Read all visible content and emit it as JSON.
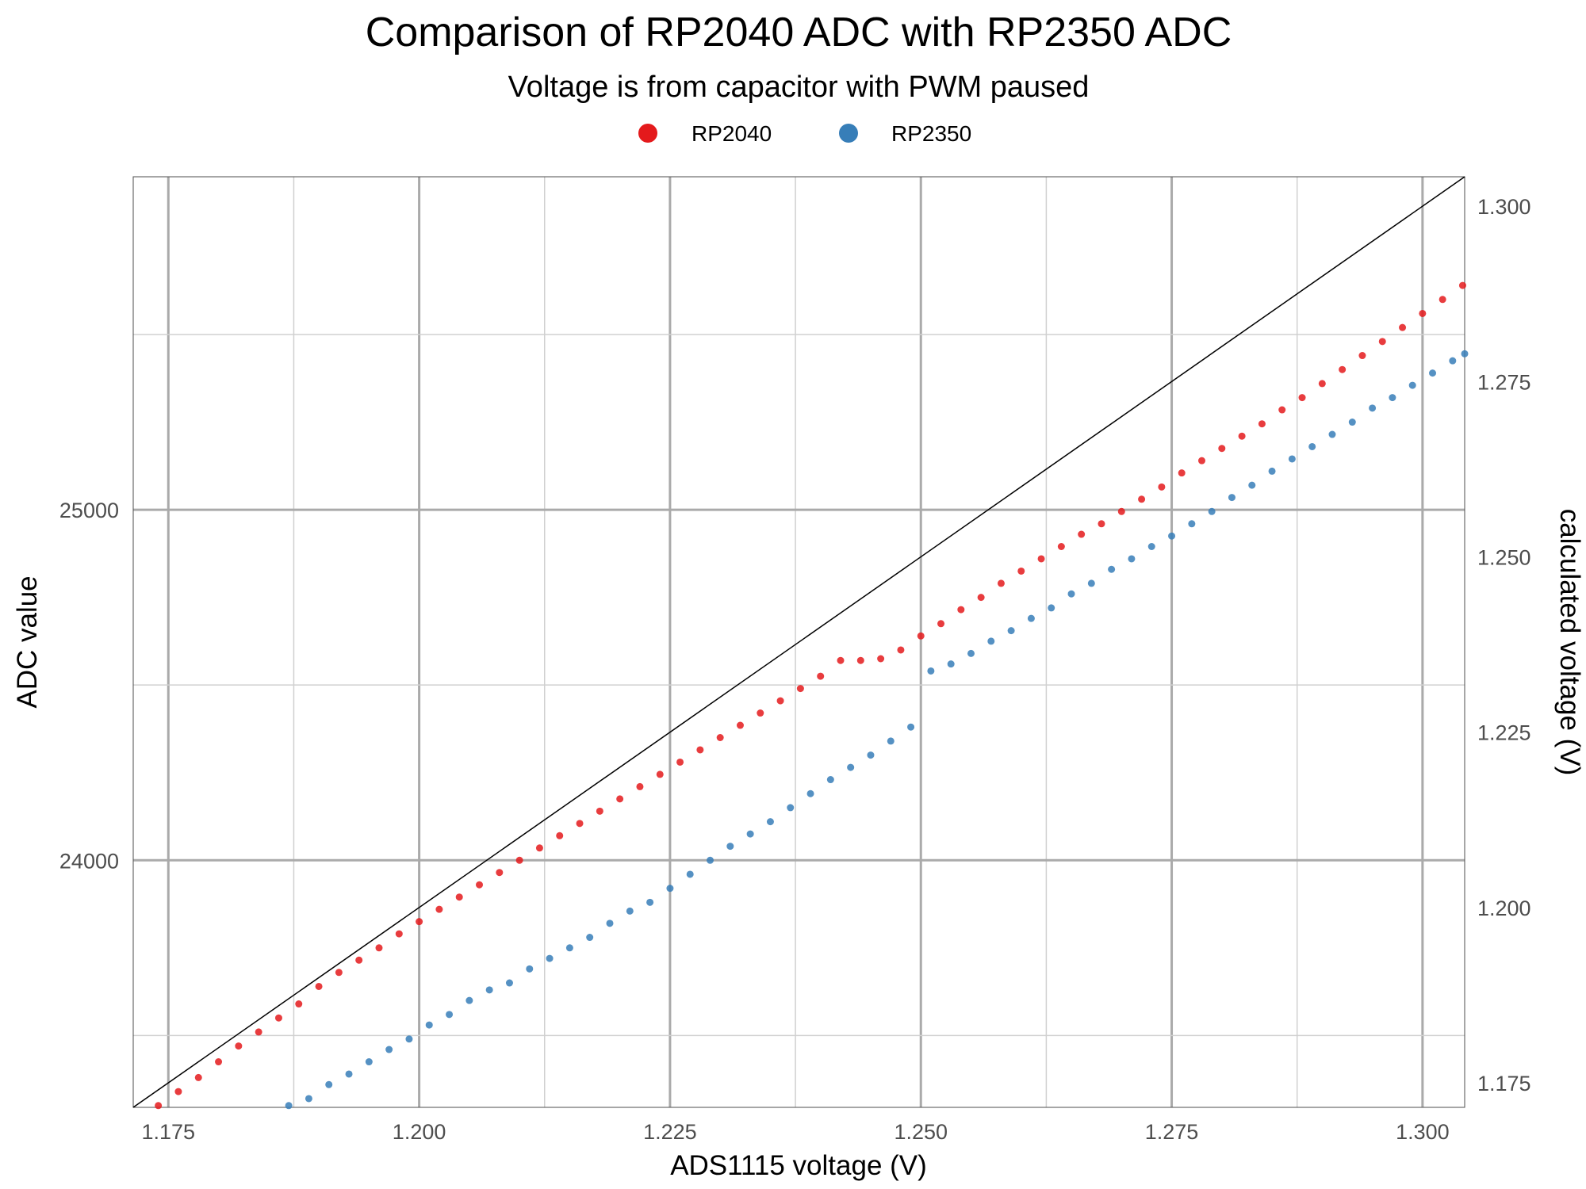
{
  "chart_data": {
    "type": "scatter",
    "title": "Comparison of RP2040 ADC with RP2350 ADC",
    "subtitle": "Voltage is from capacitor with PWM paused",
    "xlabel": "ADS1115 voltage (V)",
    "ylabel": "ADC value",
    "y2label": "calculated voltage (V)",
    "xlim": [
      1.1715,
      1.3042
    ],
    "ylim": [
      23295,
      25950
    ],
    "y2lim": [
      1.1715,
      1.3042
    ],
    "x_ticks": [
      "1.175",
      "1.200",
      "1.225",
      "1.250",
      "1.275",
      "1.300"
    ],
    "y_ticks": [
      "24000",
      "25000"
    ],
    "y2_ticks": [
      "1.175",
      "1.200",
      "1.225",
      "1.250",
      "1.275",
      "1.300"
    ],
    "reference_line": "y = x (on calculated voltage axis)",
    "grid": true,
    "legend_position": "top",
    "series": [
      {
        "name": "RP2040",
        "color": "#e41a1c",
        "points": [
          [
            1.174,
            23300
          ],
          [
            1.176,
            23340
          ],
          [
            1.178,
            23380
          ],
          [
            1.18,
            23425
          ],
          [
            1.182,
            23470
          ],
          [
            1.184,
            23510
          ],
          [
            1.186,
            23550
          ],
          [
            1.188,
            23590
          ],
          [
            1.19,
            23640
          ],
          [
            1.192,
            23680
          ],
          [
            1.194,
            23715
          ],
          [
            1.196,
            23750
          ],
          [
            1.198,
            23790
          ],
          [
            1.2,
            23825
          ],
          [
            1.202,
            23860
          ],
          [
            1.204,
            23895
          ],
          [
            1.206,
            23930
          ],
          [
            1.208,
            23965
          ],
          [
            1.21,
            24000
          ],
          [
            1.212,
            24035
          ],
          [
            1.214,
            24070
          ],
          [
            1.216,
            24105
          ],
          [
            1.218,
            24140
          ],
          [
            1.22,
            24175
          ],
          [
            1.222,
            24210
          ],
          [
            1.224,
            24245
          ],
          [
            1.226,
            24280
          ],
          [
            1.228,
            24315
          ],
          [
            1.23,
            24350
          ],
          [
            1.232,
            24385
          ],
          [
            1.234,
            24420
          ],
          [
            1.236,
            24455
          ],
          [
            1.238,
            24490
          ],
          [
            1.24,
            24525
          ],
          [
            1.242,
            24570
          ],
          [
            1.244,
            24570
          ],
          [
            1.246,
            24575
          ],
          [
            1.248,
            24600
          ],
          [
            1.25,
            24640
          ],
          [
            1.252,
            24675
          ],
          [
            1.254,
            24715
          ],
          [
            1.256,
            24750
          ],
          [
            1.258,
            24790
          ],
          [
            1.26,
            24825
          ],
          [
            1.262,
            24860
          ],
          [
            1.264,
            24895
          ],
          [
            1.266,
            24930
          ],
          [
            1.268,
            24960
          ],
          [
            1.27,
            24995
          ],
          [
            1.272,
            25030
          ],
          [
            1.274,
            25065
          ],
          [
            1.276,
            25105
          ],
          [
            1.278,
            25140
          ],
          [
            1.28,
            25175
          ],
          [
            1.282,
            25210
          ],
          [
            1.284,
            25245
          ],
          [
            1.286,
            25285
          ],
          [
            1.288,
            25320
          ],
          [
            1.29,
            25360
          ],
          [
            1.292,
            25400
          ],
          [
            1.294,
            25440
          ],
          [
            1.296,
            25480
          ],
          [
            1.298,
            25520
          ],
          [
            1.3,
            25560
          ],
          [
            1.302,
            25600
          ],
          [
            1.304,
            25640
          ]
        ]
      },
      {
        "name": "RP2350",
        "color": "#377eb8",
        "points": [
          [
            1.187,
            23300
          ],
          [
            1.189,
            23320
          ],
          [
            1.191,
            23360
          ],
          [
            1.193,
            23390
          ],
          [
            1.195,
            23425
          ],
          [
            1.197,
            23460
          ],
          [
            1.199,
            23490
          ],
          [
            1.201,
            23530
          ],
          [
            1.203,
            23560
          ],
          [
            1.205,
            23600
          ],
          [
            1.207,
            23630
          ],
          [
            1.209,
            23650
          ],
          [
            1.211,
            23690
          ],
          [
            1.213,
            23720
          ],
          [
            1.215,
            23750
          ],
          [
            1.217,
            23780
          ],
          [
            1.219,
            23820
          ],
          [
            1.221,
            23855
          ],
          [
            1.223,
            23880
          ],
          [
            1.225,
            23920
          ],
          [
            1.227,
            23960
          ],
          [
            1.229,
            24000
          ],
          [
            1.231,
            24040
          ],
          [
            1.233,
            24075
          ],
          [
            1.235,
            24110
          ],
          [
            1.237,
            24150
          ],
          [
            1.239,
            24190
          ],
          [
            1.241,
            24230
          ],
          [
            1.243,
            24265
          ],
          [
            1.245,
            24300
          ],
          [
            1.247,
            24340
          ],
          [
            1.249,
            24380
          ],
          [
            1.251,
            24540
          ],
          [
            1.253,
            24560
          ],
          [
            1.255,
            24590
          ],
          [
            1.257,
            24625
          ],
          [
            1.259,
            24655
          ],
          [
            1.261,
            24690
          ],
          [
            1.263,
            24720
          ],
          [
            1.265,
            24760
          ],
          [
            1.267,
            24790
          ],
          [
            1.269,
            24830
          ],
          [
            1.271,
            24860
          ],
          [
            1.273,
            24895
          ],
          [
            1.275,
            24925
          ],
          [
            1.277,
            24960
          ],
          [
            1.279,
            24995
          ],
          [
            1.281,
            25035
          ],
          [
            1.283,
            25070
          ],
          [
            1.285,
            25110
          ],
          [
            1.287,
            25145
          ],
          [
            1.289,
            25180
          ],
          [
            1.291,
            25215
          ],
          [
            1.293,
            25250
          ],
          [
            1.295,
            25290
          ],
          [
            1.297,
            25320
          ],
          [
            1.299,
            25355
          ],
          [
            1.301,
            25390
          ],
          [
            1.303,
            25425
          ],
          [
            1.3042,
            25445
          ]
        ]
      }
    ]
  }
}
